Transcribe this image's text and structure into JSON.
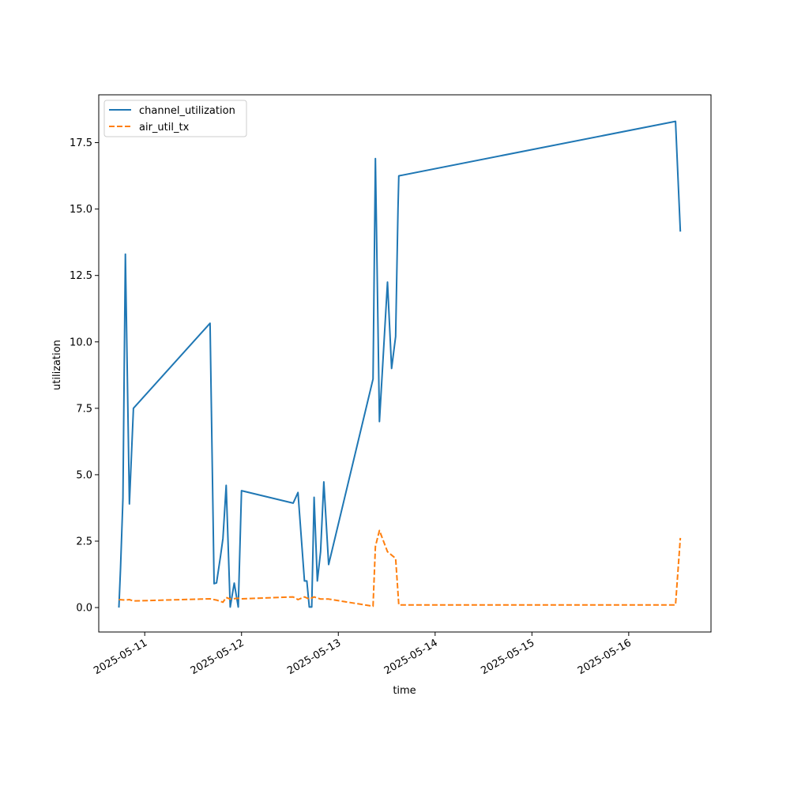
{
  "chart_data": {
    "type": "line",
    "title": "",
    "xlabel": "time",
    "ylabel": "utilization",
    "x_ticks": [
      "2025-05-11",
      "2025-05-12",
      "2025-05-13",
      "2025-05-14",
      "2025-05-15",
      "2025-05-16"
    ],
    "y_ticks": [
      "0.0",
      "2.5",
      "5.0",
      "7.5",
      "10.0",
      "12.5",
      "15.0",
      "17.5"
    ],
    "xlim": [
      "2025-05-10 12:36",
      "2025-05-16 20:24"
    ],
    "ylim": [
      -0.92,
      19.3
    ],
    "grid": false,
    "legend_position": "upper-left",
    "series": [
      {
        "name": "channel_utilization",
        "color": "#1f77b4",
        "style": "solid",
        "points": [
          [
            "2025-05-10 17:36",
            0.0
          ],
          [
            "2025-05-10 18:00",
            1.5
          ],
          [
            "2025-05-10 18:36",
            4.1
          ],
          [
            "2025-05-10 19:12",
            13.3
          ],
          [
            "2025-05-10 20:12",
            3.9
          ],
          [
            "2025-05-10 21:12",
            7.5
          ],
          [
            "2025-05-11 16:12",
            10.7
          ],
          [
            "2025-05-11 17:12",
            0.9
          ],
          [
            "2025-05-11 17:48",
            0.93
          ],
          [
            "2025-05-11 18:48",
            1.95
          ],
          [
            "2025-05-11 19:24",
            2.6
          ],
          [
            "2025-05-11 20:12",
            4.6
          ],
          [
            "2025-05-11 21:12",
            0.02
          ],
          [
            "2025-05-11 22:12",
            0.92
          ],
          [
            "2025-05-11 23:12",
            0.02
          ],
          [
            "2025-05-12 00:00",
            4.4
          ],
          [
            "2025-05-12 12:48",
            3.93
          ],
          [
            "2025-05-12 14:00",
            4.33
          ],
          [
            "2025-05-12 15:36",
            1.0
          ],
          [
            "2025-05-12 16:12",
            1.0
          ],
          [
            "2025-05-12 16:48",
            0.02
          ],
          [
            "2025-05-12 17:24",
            0.02
          ],
          [
            "2025-05-12 18:00",
            4.15
          ],
          [
            "2025-05-12 18:48",
            1.0
          ],
          [
            "2025-05-12 19:36",
            2.1
          ],
          [
            "2025-05-12 20:24",
            4.73
          ],
          [
            "2025-05-12 21:36",
            1.62
          ],
          [
            "2025-05-13 08:36",
            8.6
          ],
          [
            "2025-05-13 09:12",
            16.9
          ],
          [
            "2025-05-13 10:12",
            7.0
          ],
          [
            "2025-05-13 12:12",
            12.25
          ],
          [
            "2025-05-13 13:12",
            9.0
          ],
          [
            "2025-05-13 14:12",
            10.2
          ],
          [
            "2025-05-13 14:48",
            15.0
          ],
          [
            "2025-05-13 15:00",
            16.25
          ],
          [
            "2025-05-16 11:36",
            18.3
          ],
          [
            "2025-05-16 12:48",
            14.15
          ]
        ]
      },
      {
        "name": "air_util_tx",
        "color": "#ff7f0e",
        "style": "dashed",
        "points": [
          [
            "2025-05-10 17:36",
            0.3
          ],
          [
            "2025-05-10 19:12",
            0.28
          ],
          [
            "2025-05-10 20:12",
            0.3
          ],
          [
            "2025-05-10 21:12",
            0.25
          ],
          [
            "2025-05-11 16:12",
            0.33
          ],
          [
            "2025-05-11 17:48",
            0.28
          ],
          [
            "2025-05-11 19:24",
            0.2
          ],
          [
            "2025-05-11 20:12",
            0.38
          ],
          [
            "2025-05-11 21:12",
            0.32
          ],
          [
            "2025-05-11 23:12",
            0.35
          ],
          [
            "2025-05-12 00:00",
            0.33
          ],
          [
            "2025-05-12 12:48",
            0.4
          ],
          [
            "2025-05-12 14:00",
            0.3
          ],
          [
            "2025-05-12 15:36",
            0.4
          ],
          [
            "2025-05-12 16:48",
            0.32
          ],
          [
            "2025-05-12 18:00",
            0.4
          ],
          [
            "2025-05-12 19:36",
            0.32
          ],
          [
            "2025-05-12 21:36",
            0.32
          ],
          [
            "2025-05-13 08:36",
            0.05
          ],
          [
            "2025-05-13 09:12",
            2.3
          ],
          [
            "2025-05-13 10:12",
            2.9
          ],
          [
            "2025-05-13 12:12",
            2.1
          ],
          [
            "2025-05-13 14:12",
            1.85
          ],
          [
            "2025-05-13 15:00",
            0.1
          ],
          [
            "2025-05-16 11:36",
            0.1
          ],
          [
            "2025-05-16 12:48",
            2.62
          ]
        ]
      }
    ]
  }
}
